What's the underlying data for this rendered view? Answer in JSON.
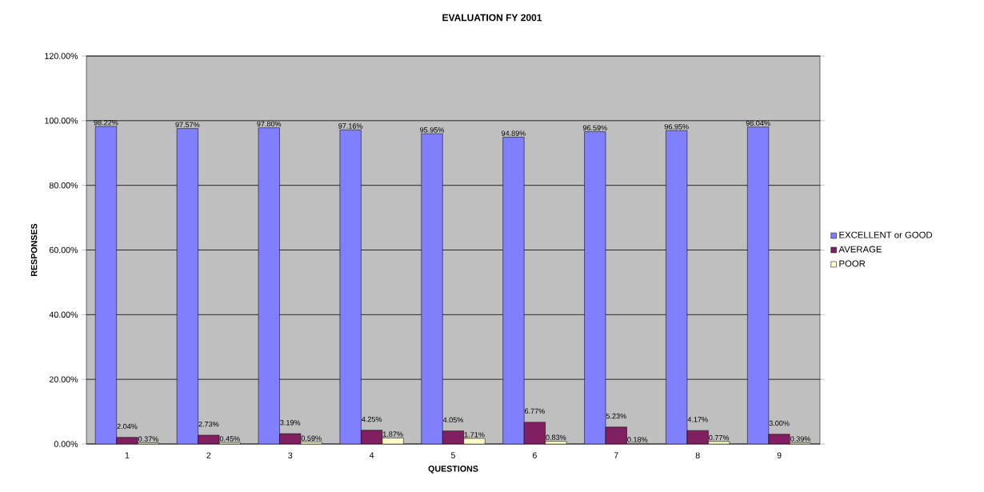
{
  "chart_data": {
    "type": "bar",
    "title": "EVALUATION FY 2001",
    "xlabel": "QUESTIONS",
    "ylabel": "RESPONSES",
    "categories": [
      "1",
      "2",
      "3",
      "4",
      "5",
      "6",
      "7",
      "8",
      "9"
    ],
    "series": [
      {
        "name": "EXCELLENT or GOOD",
        "color": "#8080ff",
        "values": [
          98.22,
          97.57,
          97.8,
          97.16,
          95.95,
          94.89,
          96.59,
          96.95,
          98.04
        ],
        "value_labels": [
          "98.22%",
          "97.57%",
          "97.80%",
          "97.16%",
          "95.95%",
          "94.89%",
          "96.59%",
          "96.95%",
          "98.04%"
        ]
      },
      {
        "name": "AVERAGE",
        "color": "#802060",
        "values": [
          2.04,
          2.73,
          3.19,
          4.25,
          4.05,
          6.77,
          5.23,
          4.17,
          3.0
        ],
        "value_labels": [
          "2.04%",
          "2.73%",
          "3.19%",
          "4.25%",
          "4.05%",
          "6.77%",
          "5.23%",
          "4.17%",
          "3.00%"
        ]
      },
      {
        "name": "POOR",
        "color": "#ffffcc",
        "values": [
          0.37,
          0.45,
          0.59,
          1.87,
          1.71,
          0.83,
          0.18,
          0.77,
          0.39
        ],
        "value_labels": [
          "0.37%",
          "0.45%",
          "0.59%",
          "1.87%",
          "1.71%",
          "0.83%",
          "0.18%",
          "0.77%",
          "0.39%"
        ]
      }
    ],
    "ylim": [
      0,
      120
    ],
    "yticks": [
      {
        "value": 0,
        "label": "0.00%"
      },
      {
        "value": 20,
        "label": "20.00%"
      },
      {
        "value": 40,
        "label": "40.00%"
      },
      {
        "value": 60,
        "label": "60.00%"
      },
      {
        "value": 80,
        "label": "80.00%"
      },
      {
        "value": 100,
        "label": "100.00%"
      },
      {
        "value": 120,
        "label": "120.00%"
      }
    ],
    "grid": "y",
    "legend": "right"
  }
}
